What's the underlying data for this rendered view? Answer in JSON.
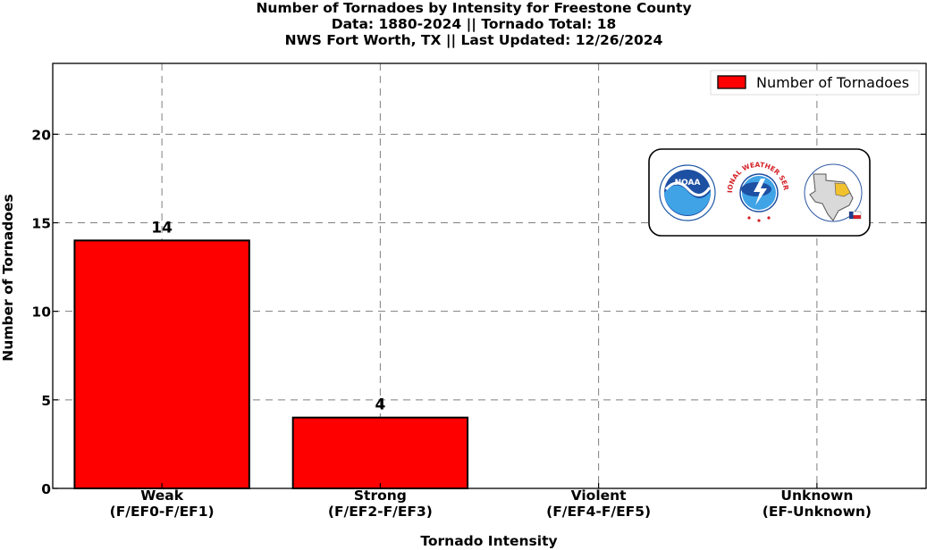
{
  "chart_data": {
    "type": "bar",
    "title": [
      "Number of Tornadoes by Intensity for Freestone County",
      "Data: 1880-2024 || Tornado Total: 18",
      "NWS Fort Worth, TX || Last Updated: 12/26/2024"
    ],
    "categories": [
      {
        "line1": "Weak",
        "line2": "(F/EF0-F/EF1)"
      },
      {
        "line1": "Strong",
        "line2": "(F/EF2-F/EF3)"
      },
      {
        "line1": "Violent",
        "line2": "(F/EF4-F/EF5)"
      },
      {
        "line1": "Unknown",
        "line2": "(EF-Unknown)"
      }
    ],
    "values": [
      14,
      4,
      0,
      0
    ],
    "data_labels": [
      "14",
      "4",
      "",
      ""
    ],
    "series_name": "Number of Tornadoes",
    "xlabel": "Tornado Intensity",
    "ylabel": "Number of Tornadoes",
    "ylim": [
      0,
      24
    ],
    "yticks": [
      0,
      5,
      10,
      15,
      20
    ],
    "grid": true,
    "legend_position": "top-right",
    "bar_color": "#ff0000",
    "edge_color": "#000000",
    "grid_color": "#7f7f7f",
    "logos": [
      "noaa-logo",
      "nws-logo",
      "nws-fort-worth-logo"
    ],
    "logo_text": {
      "noaa": "NOAA",
      "nws_ring": "NATIONAL WEATHER SERVICE"
    }
  }
}
